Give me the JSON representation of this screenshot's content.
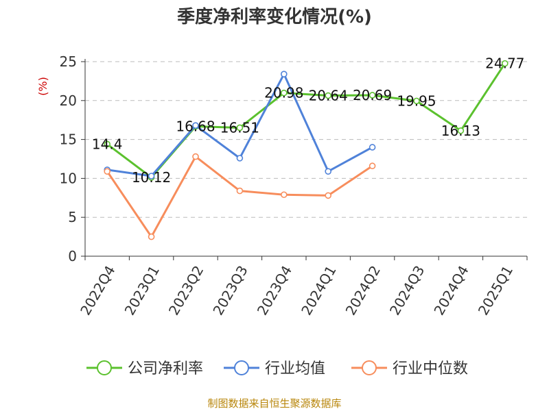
{
  "chart_data": {
    "type": "line",
    "title": "季度净利率变化情况(%)",
    "ylabel": "(%)",
    "ylim": [
      0,
      25
    ],
    "yticks": [
      0,
      5,
      10,
      15,
      20,
      25
    ],
    "grid": true,
    "legend_position": "bottom",
    "categories": [
      "2022Q4",
      "2023Q1",
      "2023Q2",
      "2023Q3",
      "2023Q4",
      "2024Q1",
      "2024Q2",
      "2024Q3",
      "2024Q4",
      "2025Q1"
    ],
    "series": [
      {
        "name": "公司净利率",
        "color": "#5bc12e",
        "values": [
          14.4,
          10.12,
          16.68,
          16.51,
          20.98,
          20.64,
          20.69,
          19.95,
          16.13,
          24.77
        ],
        "labels": [
          "14.4",
          "10.12",
          "16.68",
          "16.51",
          "20.98",
          "20.64",
          "20.69",
          "19.95",
          "16.13",
          "24.77"
        ]
      },
      {
        "name": "行业均值",
        "color": "#4f82d9",
        "values": [
          11.1,
          10.3,
          16.8,
          12.6,
          23.4,
          10.9,
          14.0,
          null,
          null,
          null
        ]
      },
      {
        "name": "行业中位数",
        "color": "#f78d5c",
        "values": [
          10.9,
          2.5,
          12.8,
          8.4,
          7.9,
          7.8,
          11.6,
          null,
          null,
          null
        ]
      }
    ],
    "source": "制图数据来自恒生聚源数据库"
  }
}
